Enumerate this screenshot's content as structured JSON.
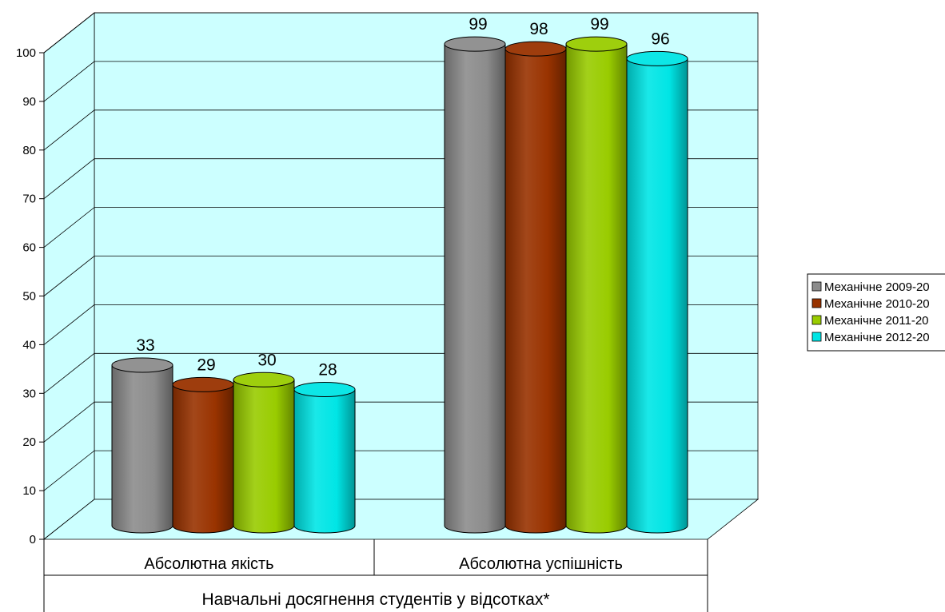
{
  "chart_data": {
    "type": "bar",
    "style": "3d-cylinder",
    "title": "",
    "xlabel": "Навчальні досягнення студентів у відсотках*",
    "ylabel": "",
    "ylim": [
      0,
      100
    ],
    "yticks": [
      "0",
      "10",
      "20",
      "30",
      "40",
      "50",
      "60",
      "70",
      "80",
      "90",
      "100"
    ],
    "grid": true,
    "legend_position": "right",
    "categories": [
      "Абсолютна якість",
      "Абсолютна успішність"
    ],
    "series": [
      {
        "name": "Механічне 2009-20",
        "color": "#8c8c8c",
        "values": [
          33,
          99
        ]
      },
      {
        "name": "Механічне 2010-20",
        "color": "#993300",
        "values": [
          29,
          98
        ]
      },
      {
        "name": "Механічне 2011-20",
        "color": "#99cc00",
        "values": [
          30,
          99
        ]
      },
      {
        "name": "Механічне 2012-20",
        "color": "#00e5e5",
        "values": [
          28,
          96
        ]
      }
    ],
    "data_labels": [
      [
        "33",
        "99"
      ],
      [
        "29",
        "98"
      ],
      [
        "30",
        "99"
      ],
      [
        "28",
        "96"
      ]
    ],
    "colors": {
      "wall": "#ccffff",
      "gridline": "#000000"
    }
  }
}
